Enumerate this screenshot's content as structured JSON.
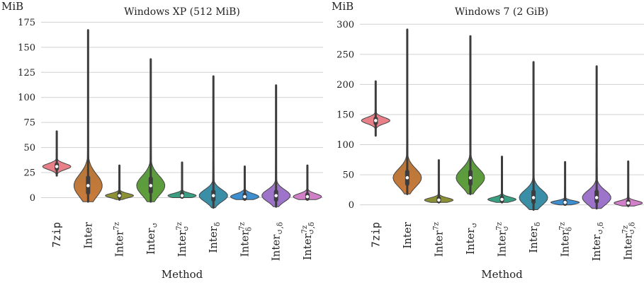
{
  "chart_data": [
    {
      "type": "violin",
      "title": "Windows XP (512 MiB)",
      "ylabel": "MiB",
      "xlabel": "Method",
      "ylim": [
        -18,
        176
      ],
      "yticks": [
        0,
        25,
        50,
        75,
        100,
        125,
        150,
        175
      ],
      "grid": true,
      "categories": [
        "7zip",
        "Inter",
        "Inter^7z",
        "Inter_↺",
        "Inter^7z_↺",
        "Inter_δ",
        "Inter^7z_δ",
        "Inter_↺,δ",
        "Inter^7z_↺,δ"
      ],
      "series": [
        {
          "min": 22,
          "q1": 29,
          "median": 31,
          "q3": 33,
          "max": 66,
          "colors": [
            "#e8808a"
          ]
        },
        {
          "min": -4,
          "q1": 5,
          "median": 12,
          "q3": 20,
          "max": 167,
          "colors": [
            "#c97a3b",
            "#6d6d35"
          ]
        },
        {
          "min": -2,
          "q1": 1,
          "median": 2,
          "q3": 4,
          "max": 32,
          "colors": [
            "#8a8f35",
            "#a6a132"
          ]
        },
        {
          "min": -4,
          "q1": 6,
          "median": 12,
          "q3": 19,
          "max": 138,
          "colors": [
            "#5f9e3a",
            "#4f8f54"
          ]
        },
        {
          "min": 0,
          "q1": 1,
          "median": 2,
          "q3": 4,
          "max": 35,
          "colors": [
            "#3a9e82",
            "#38a68a"
          ]
        },
        {
          "min": -10,
          "q1": -2,
          "median": 2,
          "q3": 6,
          "max": 121,
          "colors": [
            "#3a8fa6",
            "#3d8fb6"
          ]
        },
        {
          "min": -2,
          "q1": -1,
          "median": 1,
          "q3": 3,
          "max": 31,
          "colors": [
            "#3a8fcf",
            "#5b8fd6"
          ]
        },
        {
          "min": -9,
          "q1": -2,
          "median": 2,
          "q3": 6,
          "max": 112,
          "colors": [
            "#9b73c9",
            "#b07ac6"
          ]
        },
        {
          "min": -2,
          "q1": -1,
          "median": 1,
          "q3": 3,
          "max": 32,
          "colors": [
            "#d07fc9",
            "#d483b9"
          ]
        }
      ]
    },
    {
      "type": "violin",
      "title": "Windows 7 (2 GiB)",
      "ylabel": "MiB",
      "xlabel": "Method",
      "ylim": [
        -18,
        305
      ],
      "yticks": [
        0,
        50,
        100,
        150,
        200,
        250,
        300
      ],
      "grid": true,
      "categories": [
        "7zip",
        "Inter",
        "Inter^7z",
        "Inter_↺",
        "Inter^7z_↺",
        "Inter_δ",
        "Inter^7z_δ",
        "Inter_↺,δ",
        "Inter^7z_↺,δ"
      ],
      "series": [
        {
          "min": 115,
          "q1": 136,
          "median": 140,
          "q3": 143,
          "max": 205,
          "colors": [
            "#e8808a"
          ]
        },
        {
          "min": 18,
          "q1": 35,
          "median": 45,
          "q3": 55,
          "max": 291,
          "colors": [
            "#c97a3b",
            "#6d6d35"
          ]
        },
        {
          "min": 4,
          "q1": 6,
          "median": 8,
          "q3": 11,
          "max": 74,
          "colors": [
            "#8a8f35",
            "#a6a132"
          ]
        },
        {
          "min": 18,
          "q1": 35,
          "median": 45,
          "q3": 55,
          "max": 280,
          "colors": [
            "#5f9e3a",
            "#4f8f54"
          ]
        },
        {
          "min": 4,
          "q1": 7,
          "median": 9,
          "q3": 12,
          "max": 80,
          "colors": [
            "#3a9e82",
            "#38a68a"
          ]
        },
        {
          "min": -8,
          "q1": 5,
          "median": 12,
          "q3": 22,
          "max": 237,
          "colors": [
            "#3a8fa6",
            "#3d8fb6"
          ]
        },
        {
          "min": 0,
          "q1": 2,
          "median": 4,
          "q3": 6,
          "max": 71,
          "colors": [
            "#3a8fcf",
            "#5b8fd6"
          ]
        },
        {
          "min": -6,
          "q1": 6,
          "median": 12,
          "q3": 22,
          "max": 230,
          "colors": [
            "#9b73c9",
            "#b07ac6"
          ]
        },
        {
          "min": -2,
          "q1": 1,
          "median": 3,
          "q3": 6,
          "max": 72,
          "colors": [
            "#d07fc9",
            "#d483b9"
          ]
        }
      ]
    }
  ]
}
